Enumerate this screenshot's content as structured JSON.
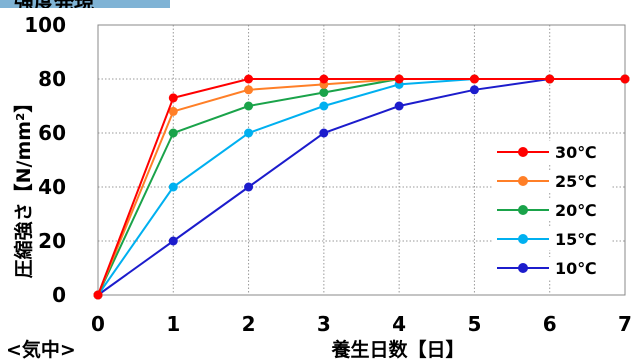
{
  "header": {
    "title": "強度発現"
  },
  "chart_data": {
    "type": "line",
    "title": "強度発現",
    "xlabel": "養生日数【日】",
    "ylabel": "圧縮強さ【N/mm²】",
    "condition_label": "<気中>",
    "x": [
      0,
      1,
      2,
      3,
      4,
      5,
      6,
      7
    ],
    "xlim": [
      0,
      7
    ],
    "ylim": [
      0,
      100
    ],
    "x_ticks": [
      "0",
      "1",
      "2",
      "3",
      "4",
      "5",
      "6",
      "7"
    ],
    "y_ticks": [
      "0",
      "20",
      "40",
      "60",
      "80",
      "100"
    ],
    "grid": true,
    "legend_position": "right",
    "series": [
      {
        "name": "30℃",
        "color": "#ff0000",
        "values": [
          0,
          73,
          80,
          80,
          80,
          80,
          80,
          80
        ]
      },
      {
        "name": "25℃",
        "color": "#ff7f27",
        "values": [
          0,
          68,
          76,
          78,
          80,
          80,
          80,
          80
        ]
      },
      {
        "name": "20℃",
        "color": "#1aa34a",
        "values": [
          0,
          60,
          70,
          75,
          80,
          80,
          80,
          80
        ]
      },
      {
        "name": "15℃",
        "color": "#00b0f0",
        "values": [
          0,
          40,
          60,
          70,
          78,
          80,
          80,
          80
        ]
      },
      {
        "name": "10℃",
        "color": "#1c1ccc",
        "values": [
          0,
          20,
          40,
          60,
          70,
          76,
          80,
          80
        ]
      }
    ]
  }
}
